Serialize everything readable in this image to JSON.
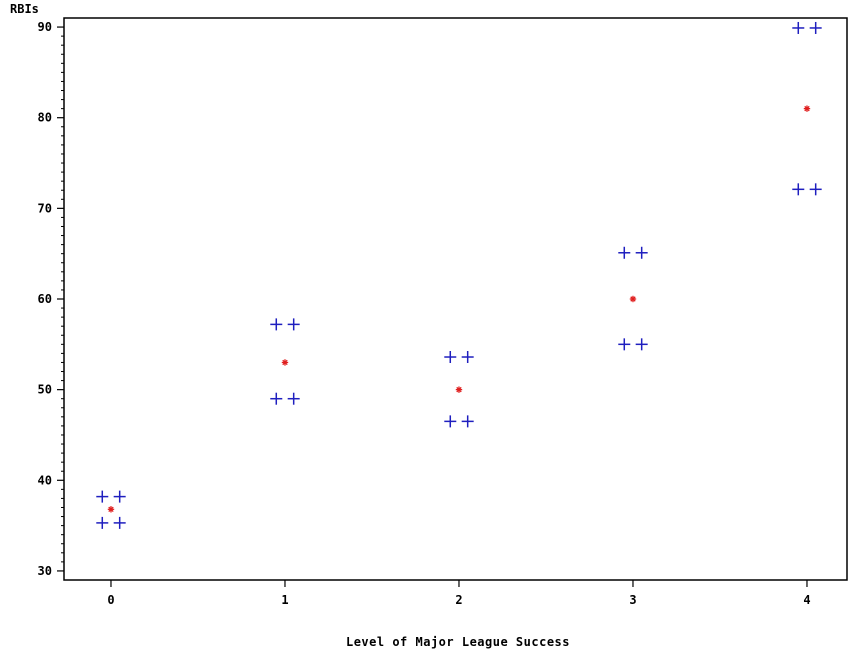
{
  "chart_data": {
    "type": "scatter",
    "title": "",
    "xlabel": "Level of Major League Success",
    "ylabel": "RBIs",
    "xlim": [
      -0.27,
      4.23
    ],
    "ylim": [
      29,
      91
    ],
    "xticks": [
      0,
      1,
      2,
      3,
      4
    ],
    "xtick_labels": [
      "0",
      "1",
      "2",
      "3",
      "4"
    ],
    "yticks": [
      30,
      40,
      50,
      60,
      70,
      80,
      90
    ],
    "ytick_labels": [
      "30",
      "40",
      "50",
      "60",
      "70",
      "80",
      "90"
    ],
    "grid": false,
    "legend": "none",
    "series": [
      {
        "marker": "plus",
        "color": "#1f1fbf",
        "points": [
          {
            "x": -0.05,
            "y": 38.2
          },
          {
            "x": 0.05,
            "y": 38.2
          },
          {
            "x": -0.05,
            "y": 35.3
          },
          {
            "x": 0.05,
            "y": 35.3
          },
          {
            "x": 0.95,
            "y": 57.2
          },
          {
            "x": 1.05,
            "y": 57.2
          },
          {
            "x": 0.95,
            "y": 49.0
          },
          {
            "x": 1.05,
            "y": 49.0
          },
          {
            "x": 1.95,
            "y": 53.6
          },
          {
            "x": 2.05,
            "y": 53.6
          },
          {
            "x": 1.95,
            "y": 46.5
          },
          {
            "x": 2.05,
            "y": 46.5
          },
          {
            "x": 2.95,
            "y": 65.1
          },
          {
            "x": 3.05,
            "y": 65.1
          },
          {
            "x": 2.95,
            "y": 55.0
          },
          {
            "x": 3.05,
            "y": 55.0
          },
          {
            "x": 3.95,
            "y": 89.9
          },
          {
            "x": 4.05,
            "y": 89.9
          },
          {
            "x": 3.95,
            "y": 72.1
          },
          {
            "x": 4.05,
            "y": 72.1
          }
        ]
      },
      {
        "marker": "star",
        "color": "#e02020",
        "points": [
          {
            "x": 0,
            "y": 36.8
          },
          {
            "x": 1,
            "y": 53.0
          },
          {
            "x": 2,
            "y": 50.0
          },
          {
            "x": 3,
            "y": 60.0
          },
          {
            "x": 4,
            "y": 81.0
          }
        ]
      }
    ]
  }
}
